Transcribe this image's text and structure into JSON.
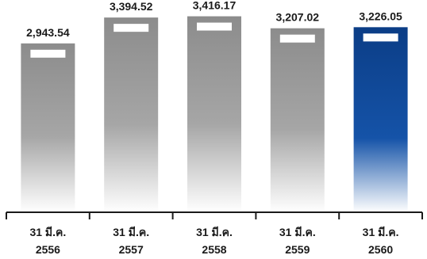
{
  "chart_data": {
    "type": "bar",
    "categories": [
      [
        "31 มี.ค.",
        "2556"
      ],
      [
        "31 มี.ค.",
        "2557"
      ],
      [
        "31 มี.ค.",
        "2558"
      ],
      [
        "31 มี.ค.",
        "2559"
      ],
      [
        "31 มี.ค.",
        "2560"
      ]
    ],
    "values": [
      2943.54,
      3394.52,
      3416.17,
      3207.02,
      3226.05
    ],
    "value_labels": [
      "2,943.54",
      "3,394.52",
      "3,416.17",
      "3,207.02",
      "3,226.05"
    ],
    "title": "",
    "xlabel": "",
    "ylabel": "",
    "ylim": [
      0,
      3700
    ],
    "grid": false,
    "legend": "none",
    "highlight_index": 4,
    "colors": {
      "bar_gray_top": "#8c8c8c",
      "bar_gray_mid": "#a6a6a6",
      "bar_gray_bottom": "#ffffff",
      "bar_blue_top": "#0b3d86",
      "bar_blue_mid": "#1553a8",
      "bar_blue_bottom": "#ffffff",
      "marker": "#ffffff",
      "axis": "#1a1a1a",
      "text": "#1a1a1a"
    }
  }
}
